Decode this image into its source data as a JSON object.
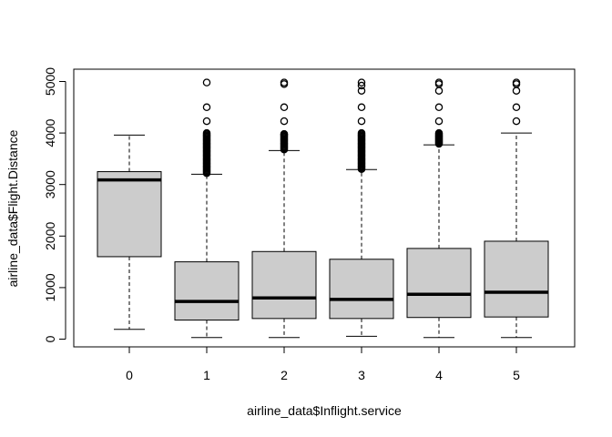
{
  "chart_data": {
    "type": "box",
    "title": "",
    "xlabel": "airline_data$Inflight.service",
    "ylabel": "airline_data$Flight.Distance",
    "ylim": [
      0,
      5000
    ],
    "y_ticks": [
      0,
      1000,
      2000,
      3000,
      4000,
      5000
    ],
    "grid": false,
    "legend": "none",
    "box_fill": "#cccccc",
    "categories": [
      "0",
      "1",
      "2",
      "3",
      "4",
      "5"
    ],
    "boxes": [
      {
        "category": "0",
        "whisker_low": 190,
        "q1": 1600,
        "median": 3090,
        "q3": 3250,
        "whisker_high": 3960,
        "outliers": [],
        "outlier_band": null
      },
      {
        "category": "1",
        "whisker_low": 31,
        "q1": 370,
        "median": 730,
        "q3": 1500,
        "whisker_high": 3200,
        "outliers": [
          4230,
          4500,
          4980
        ],
        "outlier_band": [
          3220,
          4000
        ]
      },
      {
        "category": "2",
        "whisker_low": 31,
        "q1": 400,
        "median": 800,
        "q3": 1700,
        "whisker_high": 3660,
        "outliers": [
          3980,
          4230,
          4500,
          4950,
          4980
        ],
        "outlier_band": [
          3680,
          3980
        ]
      },
      {
        "category": "3",
        "whisker_low": 56,
        "q1": 400,
        "median": 770,
        "q3": 1550,
        "whisker_high": 3290,
        "outliers": [
          4230,
          4500,
          4820,
          4920,
          4980
        ],
        "outlier_band": [
          3300,
          4000
        ]
      },
      {
        "category": "4",
        "whisker_low": 31,
        "q1": 420,
        "median": 870,
        "q3": 1760,
        "whisker_high": 3770,
        "outliers": [
          4230,
          4500,
          4820,
          4950,
          4980
        ],
        "outlier_band": [
          3790,
          4000
        ]
      },
      {
        "category": "5",
        "whisker_low": 31,
        "q1": 430,
        "median": 910,
        "q3": 1900,
        "whisker_high": 4000,
        "outliers": [
          4230,
          4500,
          4820,
          4950,
          4980
        ],
        "outlier_band": null
      }
    ]
  }
}
